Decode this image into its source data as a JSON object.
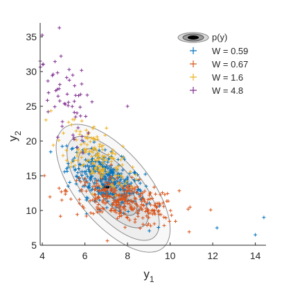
{
  "chart_data": {
    "type": "scatter",
    "title": "",
    "xlabel": "y",
    "xlabel_sub": "1",
    "ylabel": "y",
    "ylabel_sub": "2",
    "xlim": [
      3.9,
      14.5
    ],
    "ylim": [
      5,
      37
    ],
    "xticks": [
      4,
      6,
      8,
      10,
      12,
      14
    ],
    "yticks": [
      5,
      10,
      15,
      20,
      25,
      30,
      35
    ],
    "grid": false,
    "legend_placement": "top-right",
    "density_label": "p(y)",
    "density_mode": [
      7.0,
      13.4
    ],
    "series": [
      {
        "name": "W = 0.59",
        "color": "#0072BD",
        "center": [
          7.0,
          14.5
        ],
        "n": 330,
        "spread": [
          0.9,
          2.2
        ],
        "corr": -0.55
      },
      {
        "name": "W = 0.67",
        "color": "#D95319",
        "center": [
          7.8,
          11.3
        ],
        "n": 300,
        "spread": [
          1.3,
          1.7
        ],
        "corr": -0.45
      },
      {
        "name": "W =  1.6",
        "color": "#EDB120",
        "center": [
          6.5,
          18.0
        ],
        "n": 150,
        "spread": [
          0.8,
          2.6
        ],
        "corr": -0.6
      },
      {
        "name": "W =  4.8",
        "color": "#7E2F8E",
        "center": [
          5.0,
          26.5
        ],
        "n": 60,
        "spread": [
          0.6,
          3.5
        ],
        "corr": -0.5
      }
    ],
    "outliers": [
      {
        "series": 0,
        "x": 14.0,
        "y": 6.5
      },
      {
        "series": 0,
        "x": 14.4,
        "y": 9.0
      },
      {
        "series": 0,
        "x": 12.2,
        "y": 7.5
      },
      {
        "series": 3,
        "x": 4.8,
        "y": 36.3
      },
      {
        "series": 3,
        "x": 3.9,
        "y": 31.5
      },
      {
        "series": 3,
        "x": 8.0,
        "y": 25.0
      }
    ]
  }
}
